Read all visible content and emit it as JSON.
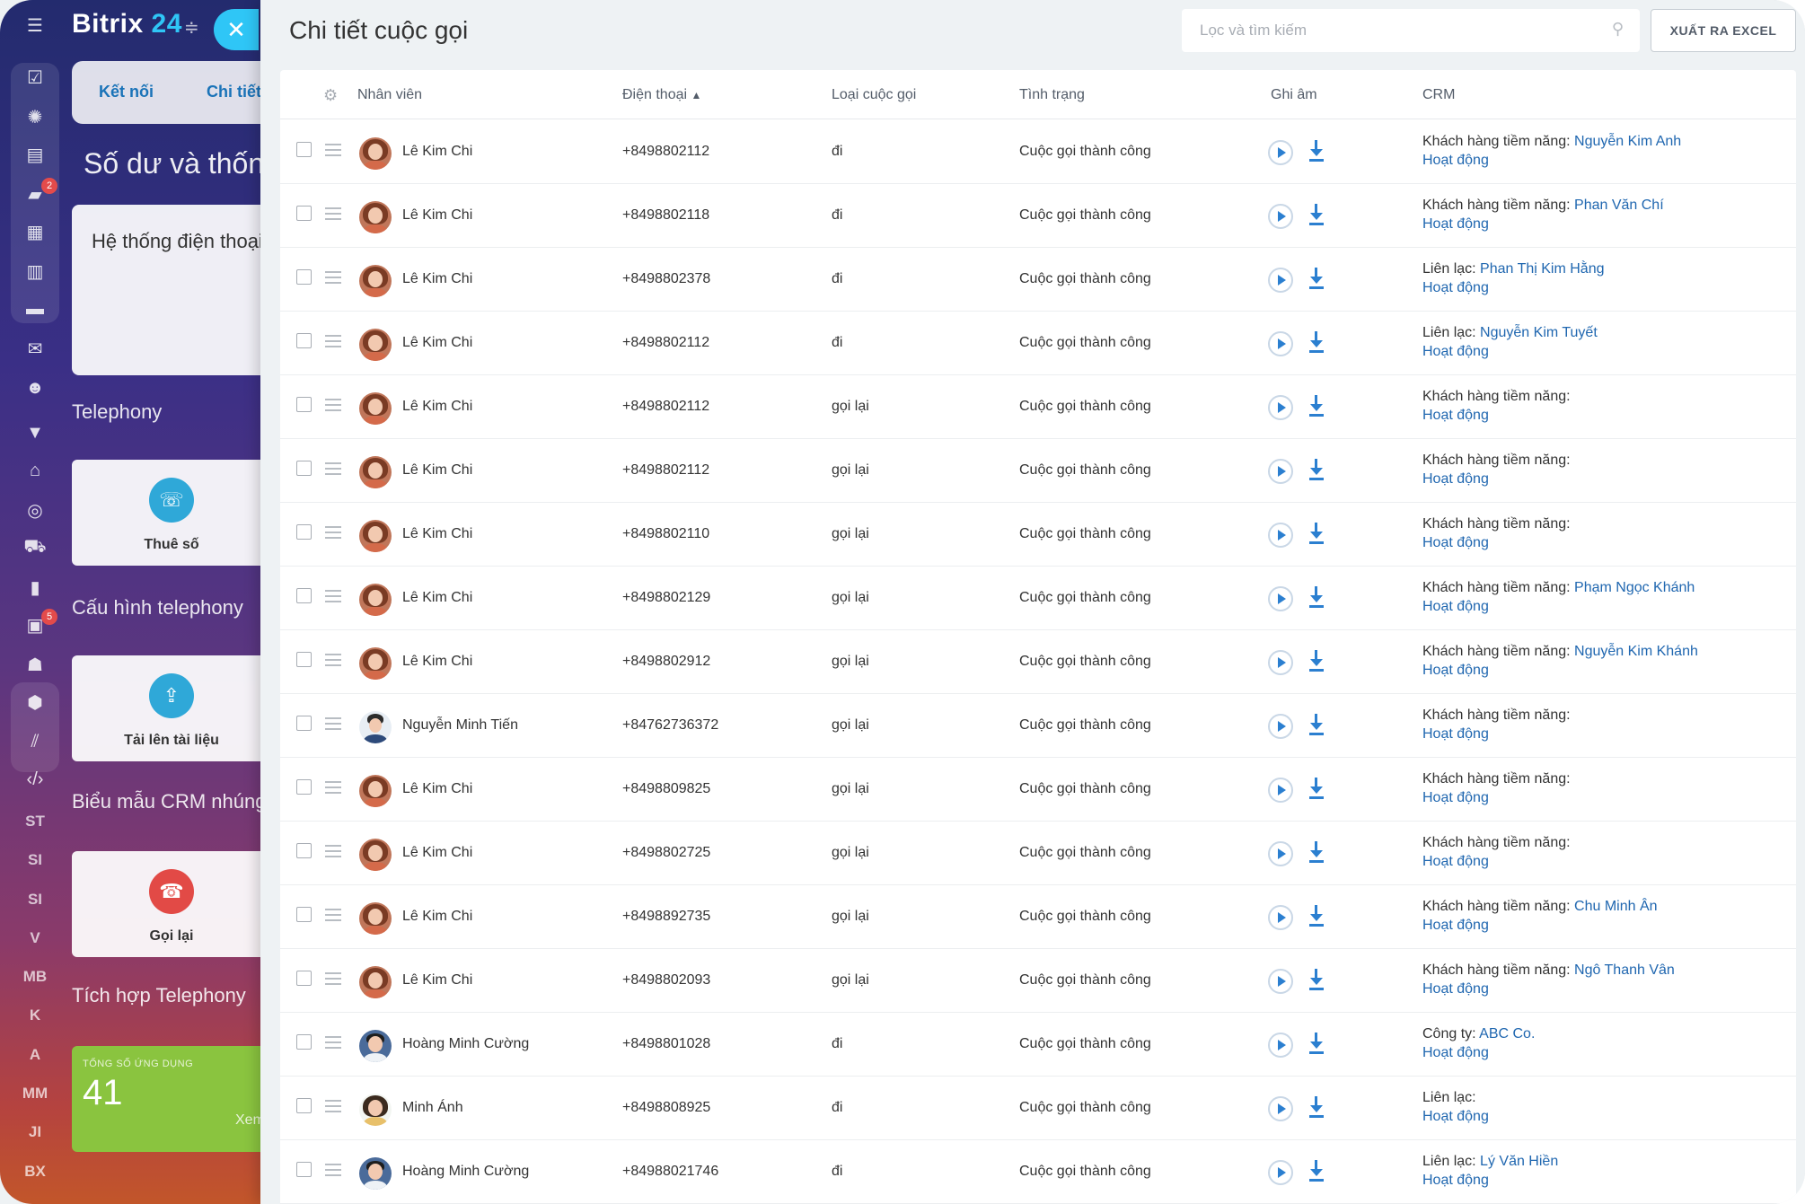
{
  "sidebar": {
    "brand_name": "Bitrix",
    "brand_num": "24",
    "badges": [
      "2",
      "5"
    ],
    "rail_texts": [
      "ST",
      "SI",
      "SI",
      "V",
      "MB",
      "K",
      "A",
      "MM",
      "JI",
      "BX"
    ]
  },
  "background": {
    "tab1": "Kết nối",
    "tab2": "Chi tiết",
    "title": "Số dư và thống",
    "card_text": "Hệ thống điện thoại",
    "section1": "Telephony",
    "tile1": "Thuê số",
    "section2": "Cấu hình telephony",
    "tile2": "Tải lên tài liệu",
    "section3": "Biểu mẫu CRM nhúng",
    "tile3": "Gọi lại",
    "section4": "Tích hợp Telephony",
    "stat_caption": "TỔNG SỐ ỨNG DỤNG",
    "stat_value": "41",
    "stat_more": "Xem"
  },
  "header": {
    "title": "Chi tiết cuộc gọi",
    "search_placeholder": "Lọc và tìm kiếm",
    "export_label": "XUẤT RA EXCEL"
  },
  "table": {
    "columns": {
      "employee": "Nhân viên",
      "phone": "Điện thoại",
      "type": "Loại cuộc gọi",
      "status": "Tình trạng",
      "recording": "Ghi âm",
      "crm": "CRM"
    },
    "activity_label": "Hoạt động",
    "rows": [
      {
        "employee": "Lê Kim Chi",
        "avatar": "female",
        "phone": "+8498802112",
        "type": "đi",
        "status": "Cuộc gọi thành công",
        "crm_label": "Khách hàng tiềm năng:",
        "crm_name": "Nguyễn Kim Anh"
      },
      {
        "employee": "Lê Kim Chi",
        "avatar": "female",
        "phone": "+8498802118",
        "type": "đi",
        "status": "Cuộc gọi thành công",
        "crm_label": "Khách hàng tiềm năng:",
        "crm_name": "Phan Văn Chí"
      },
      {
        "employee": "Lê Kim Chi",
        "avatar": "female",
        "phone": "+8498802378",
        "type": "đi",
        "status": "Cuộc gọi thành công",
        "crm_label": "Liên lạc:",
        "crm_name": "Phan Thị Kim Hằng"
      },
      {
        "employee": "Lê Kim Chi",
        "avatar": "female",
        "phone": "+8498802112",
        "type": "đi",
        "status": "Cuộc gọi thành công",
        "crm_label": "Liên lạc:",
        "crm_name": "Nguyễn Kim Tuyết"
      },
      {
        "employee": "Lê Kim Chi",
        "avatar": "female",
        "phone": "+8498802112",
        "type": "gọi lại",
        "status": "Cuộc gọi thành công",
        "crm_label": "Khách hàng tiềm năng:",
        "crm_name": ""
      },
      {
        "employee": "Lê Kim Chi",
        "avatar": "female",
        "phone": "+8498802112",
        "type": "gọi lại",
        "status": "Cuộc gọi thành công",
        "crm_label": "Khách hàng tiềm năng:",
        "crm_name": ""
      },
      {
        "employee": "Lê Kim Chi",
        "avatar": "female",
        "phone": "+8498802110",
        "type": "gọi lại",
        "status": "Cuộc gọi thành công",
        "crm_label": "Khách hàng tiềm năng:",
        "crm_name": ""
      },
      {
        "employee": "Lê Kim Chi",
        "avatar": "female",
        "phone": "+8498802129",
        "type": "gọi lại",
        "status": "Cuộc gọi thành công",
        "crm_label": "Khách hàng tiềm năng:",
        "crm_name": "Phạm Ngọc Khánh"
      },
      {
        "employee": "Lê Kim Chi",
        "avatar": "female",
        "phone": "+8498802912",
        "type": "gọi lại",
        "status": "Cuộc gọi thành công",
        "crm_label": "Khách hàng tiềm năng:",
        "crm_name": "Nguyễn Kim Khánh"
      },
      {
        "employee": "Nguyễn Minh Tiến",
        "avatar": "male",
        "phone": "+84762736372",
        "type": "gọi lại",
        "status": "Cuộc gọi thành công",
        "crm_label": "Khách hàng tiềm năng:",
        "crm_name": ""
      },
      {
        "employee": "Lê Kim Chi",
        "avatar": "female",
        "phone": "+8498809825",
        "type": "gọi lại",
        "status": "Cuộc gọi thành công",
        "crm_label": "Khách hàng tiềm năng:",
        "crm_name": ""
      },
      {
        "employee": "Lê Kim Chi",
        "avatar": "female",
        "phone": "+8498802725",
        "type": "gọi lại",
        "status": "Cuộc gọi thành công",
        "crm_label": "Khách hàng tiềm năng:",
        "crm_name": ""
      },
      {
        "employee": "Lê Kim Chi",
        "avatar": "female",
        "phone": "+8498892735",
        "type": "gọi lại",
        "status": "Cuộc gọi thành công",
        "crm_label": "Khách hàng tiềm năng:",
        "crm_name": "Chu Minh Ân"
      },
      {
        "employee": "Lê Kim Chi",
        "avatar": "female",
        "phone": "+8498802093",
        "type": "gọi lại",
        "status": "Cuộc gọi thành công",
        "crm_label": "Khách hàng tiềm năng:",
        "crm_name": "Ngô Thanh Vân"
      },
      {
        "employee": "Hoàng Minh Cường",
        "avatar": "glasses",
        "phone": "+8498801028",
        "type": "đi",
        "status": "Cuộc gọi thành công",
        "crm_label": "Công ty:",
        "crm_name": "ABC Co."
      },
      {
        "employee": "Minh Ánh",
        "avatar": "female2",
        "phone": "+8498808925",
        "type": "đi",
        "status": "Cuộc gọi thành công",
        "crm_label": "Liên lạc:",
        "crm_name": ""
      },
      {
        "employee": "Hoàng Minh Cường",
        "avatar": "glasses",
        "phone": "+84988021746",
        "type": "đi",
        "status": "Cuộc gọi thành công",
        "crm_label": "Liên lạc:",
        "crm_name": "Lý Văn Hiền"
      }
    ]
  },
  "colors": {
    "accent": "#2fc6f6",
    "link": "#2067b0",
    "play": "#2b7fd0"
  }
}
